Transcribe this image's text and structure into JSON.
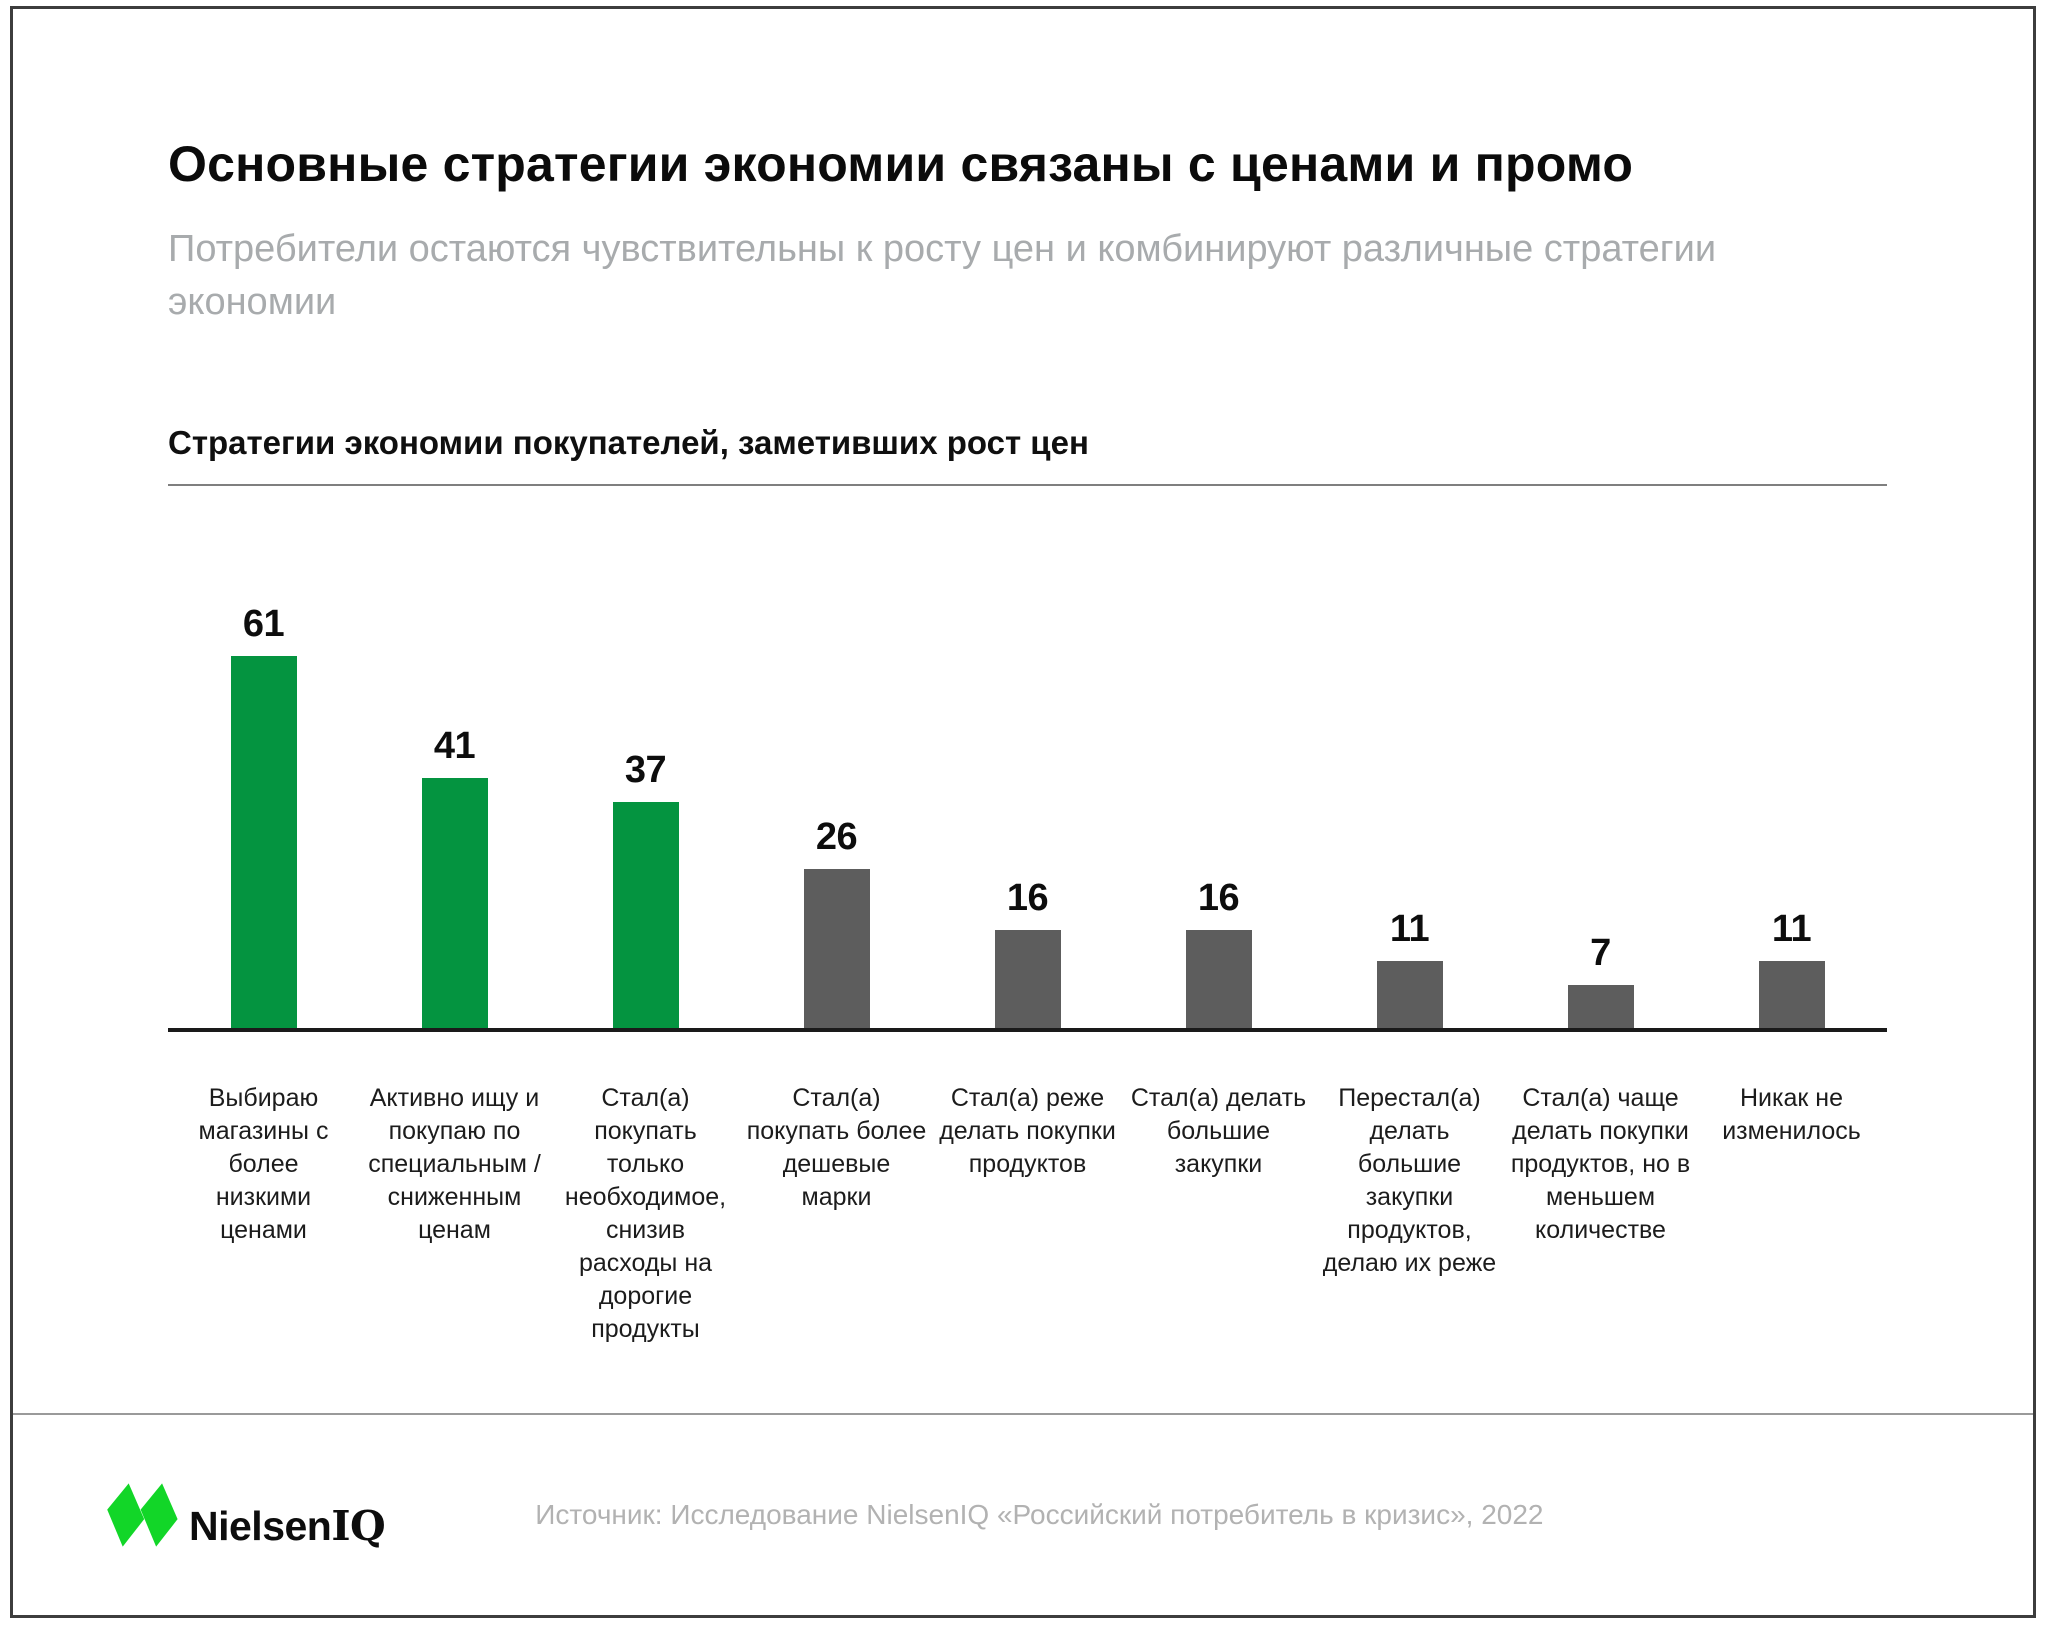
{
  "page": {
    "title": "Основные стратегии экономии связаны с ценами и промо",
    "subtitle": "Потребители остаются чувствительны к росту цен и комбинируют различные стратегии экономии"
  },
  "chart_section": {
    "title": "Стратегии экономии покупателей, заметивших рост цен"
  },
  "chart_data": {
    "type": "bar",
    "title": "Стратегии экономии покупателей, заметивших рост цен",
    "categories": [
      "Выбираю\nмагазины с\nболее\nнизкими\nценами",
      "Активно ищу и\nпокупаю по\nспециальным /\nсниженным\nценам",
      "Стал(а)\nпокупать\nтолько\nнеобходимое,\nснизив\nрасходы на\nдорогие\nпродукты",
      "Стал(а)\nпокупать более\nдешевые\nмарки",
      "Стал(а) реже\nделать покупки\nпродуктов",
      "Стал(а) делать\nбольшие\nзакупки",
      "Перестал(а)\nделать\nбольшие\nзакупки\nпродуктов,\nделаю их реже",
      "Стал(а) чаще\nделать покупки\nпродуктов, но в\nменьшем\nколичестве",
      "Никак не\nизменилось"
    ],
    "values": [
      61,
      41,
      37,
      26,
      16,
      16,
      11,
      7,
      11
    ],
    "bar_colors": [
      "#049440",
      "#049440",
      "#049440",
      "#5d5d5d",
      "#5d5d5d",
      "#5d5d5d",
      "#5d5d5d",
      "#5d5d5d",
      "#5d5d5d"
    ],
    "highlight_color": "#049440",
    "muted_color": "#5d5d5d",
    "value_labels": true,
    "xlabel": "",
    "ylabel": "",
    "ylim": [
      0,
      88
    ],
    "grid": false,
    "legend": null
  },
  "footer": {
    "logo": {
      "brand_main": "Nielsen",
      "brand_suffix": "IQ",
      "mark_color": "#12d628"
    },
    "source": "Источник: Исследование NielsenIQ «Российский потребитель в кризис», 2022"
  },
  "colors": {
    "title": "#0b0b0b",
    "subtitle": "#a8abad",
    "axis": "#1a1a1a",
    "source_text": "#b2b2b2",
    "card_border": "#3d3d3d"
  }
}
